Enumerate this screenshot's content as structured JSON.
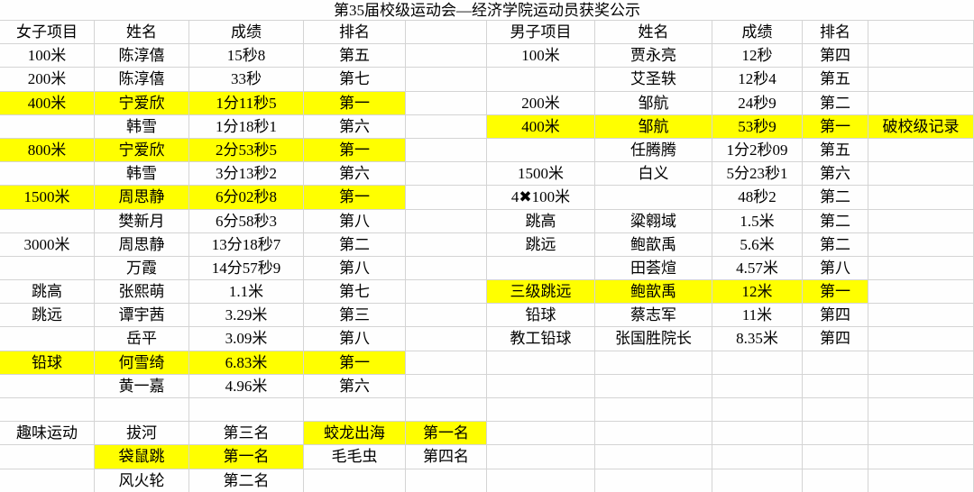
{
  "title": "第35届校级运动会—经济学院运动员获奖公示",
  "colors": {
    "highlight": "#ffff00",
    "grid_line": "#d4d4d4",
    "text": "#000000",
    "background": "#fefefe"
  },
  "table": {
    "header": {
      "cells": [
        "女子项目",
        "姓名",
        "成绩",
        "排名",
        "",
        "男子项目",
        "姓名",
        "成绩",
        "排名",
        ""
      ]
    },
    "rows": [
      {
        "cells": [
          "100米",
          "陈淳僖",
          "15秒8",
          "第五",
          "",
          "100米",
          "贾永亮",
          "12秒",
          "第四",
          ""
        ],
        "hl": []
      },
      {
        "cells": [
          "200米",
          "陈淳僖",
          "33秒",
          "第七",
          "",
          "",
          "艾圣轶",
          "12秒4",
          "第五",
          ""
        ],
        "hl": []
      },
      {
        "cells": [
          "400米",
          "宁爱欣",
          "1分11秒5",
          "第一",
          "",
          "200米",
          "邹航",
          "24秒9",
          "第二",
          ""
        ],
        "hl": [
          0,
          1,
          2,
          3
        ]
      },
      {
        "cells": [
          "",
          "韩雪",
          "1分18秒1",
          "第六",
          "",
          "400米",
          "邹航",
          "53秒9",
          "第一",
          "破校级记录"
        ],
        "hl": [
          5,
          6,
          7,
          8,
          9
        ]
      },
      {
        "cells": [
          "800米",
          "宁爱欣",
          "2分53秒5",
          "第一",
          "",
          "",
          "任腾腾",
          "1分2秒09",
          "第五",
          ""
        ],
        "hl": [
          0,
          1,
          2,
          3
        ]
      },
      {
        "cells": [
          "",
          "韩雪",
          "3分13秒2",
          "第六",
          "",
          "1500米",
          "白义",
          "5分23秒1",
          "第六",
          ""
        ],
        "hl": []
      },
      {
        "cells": [
          "1500米",
          "周思静",
          "6分02秒8",
          "第一",
          "",
          "4✖100米",
          "",
          "48秒2",
          "第二",
          ""
        ],
        "hl": [
          0,
          1,
          2,
          3
        ]
      },
      {
        "cells": [
          "",
          "樊新月",
          "6分58秒3",
          "第八",
          "",
          "跳高",
          "粱翱域",
          "1.5米",
          "第二",
          ""
        ],
        "hl": []
      },
      {
        "cells": [
          "3000米",
          "周思静",
          "13分18秒7",
          "第二",
          "",
          "跳远",
          "鲍歆禹",
          "5.6米",
          "第二",
          ""
        ],
        "hl": []
      },
      {
        "cells": [
          "",
          "万霞",
          "14分57秒9",
          "第八",
          "",
          "",
          "田荟煊",
          "4.57米",
          "第八",
          ""
        ],
        "hl": []
      },
      {
        "cells": [
          "跳高",
          "张熙萌",
          "1.1米",
          "第七",
          "",
          "三级跳远",
          "鲍歆禹",
          "12米",
          "第一",
          ""
        ],
        "hl": [
          5,
          6,
          7,
          8
        ]
      },
      {
        "cells": [
          "跳远",
          "谭宇茜",
          "3.29米",
          "第三",
          "",
          "铅球",
          "蔡志军",
          "11米",
          "第四",
          ""
        ],
        "hl": []
      },
      {
        "cells": [
          "",
          "岳平",
          "3.09米",
          "第八",
          "",
          "教工铅球",
          "张国胜院长",
          "8.35米",
          "第四",
          ""
        ],
        "hl": []
      },
      {
        "cells": [
          "铅球",
          "何雪绮",
          "6.83米",
          "第一",
          "",
          "",
          "",
          "",
          "",
          ""
        ],
        "hl": [
          0,
          1,
          2,
          3
        ]
      },
      {
        "cells": [
          "",
          "黄一嘉",
          "4.96米",
          "第六",
          "",
          "",
          "",
          "",
          "",
          ""
        ],
        "hl": []
      },
      {
        "cells": [
          "",
          "",
          "",
          "",
          "",
          "",
          "",
          "",
          "",
          ""
        ],
        "hl": []
      },
      {
        "cells": [
          "趣味运动",
          "拔河",
          "第三名",
          "蛟龙出海",
          "第一名",
          "",
          "",
          "",
          "",
          ""
        ],
        "hl": [
          3,
          4
        ]
      },
      {
        "cells": [
          "",
          "袋鼠跳",
          "第一名",
          "毛毛虫",
          "第四名",
          "",
          "",
          "",
          "",
          ""
        ],
        "hl": [
          1,
          2
        ]
      },
      {
        "cells": [
          "",
          "风火轮",
          "第二名",
          "",
          "",
          "",
          "",
          "",
          "",
          ""
        ],
        "hl": []
      }
    ]
  }
}
